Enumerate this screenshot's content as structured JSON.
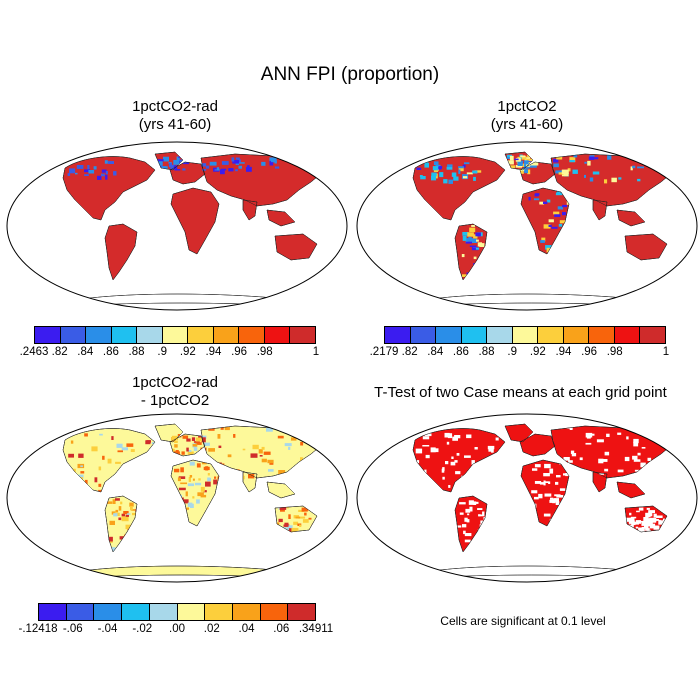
{
  "title": "ANN FPI (proportion)",
  "panels": [
    {
      "id": "tl",
      "title_line1": "1pctCO2-rad",
      "title_line2": "(yrs 41-60)",
      "scheme": "rad"
    },
    {
      "id": "tr",
      "title_line1": "1pctCO2",
      "title_line2": "(yrs 41-60)",
      "scheme": "ctrl"
    },
    {
      "id": "bl",
      "title_line1": "1pctCO2-rad",
      "title_line2": "- 1pctCO2",
      "scheme": "diff"
    },
    {
      "id": "br",
      "title_line1": "T-Test of two Case means at each grid point",
      "title_line2": "",
      "scheme": "ttest"
    }
  ],
  "colorbars": {
    "top_left": {
      "colors": [
        "#3b1cf0",
        "#3a5ce6",
        "#2a8ee8",
        "#1fc0f0",
        "#a8d8ea",
        "#fdf99a",
        "#fccf3c",
        "#f9a21a",
        "#f8640c",
        "#ee1212",
        "#cf2b2b"
      ],
      "labels": [
        ".2463",
        ".82",
        ".84",
        ".86",
        ".88",
        ".9",
        ".92",
        ".94",
        ".96",
        ".98",
        "1"
      ]
    },
    "top_right": {
      "colors": [
        "#3b1cf0",
        "#3a5ce6",
        "#2a8ee8",
        "#1fc0f0",
        "#a8d8ea",
        "#fdf99a",
        "#fccf3c",
        "#f9a21a",
        "#f8640c",
        "#ee1212",
        "#cf2b2b"
      ],
      "labels": [
        ".2179",
        ".82",
        ".84",
        ".86",
        ".88",
        ".9",
        ".92",
        ".94",
        ".96",
        ".98",
        "1"
      ]
    },
    "bottom_left": {
      "colors": [
        "#3b1cf0",
        "#3a5ce6",
        "#2a8ee8",
        "#1fc0f0",
        "#a8d8ea",
        "#fdf99a",
        "#fccf3c",
        "#f9a21a",
        "#f8640c",
        "#cf2b2b"
      ],
      "labels": [
        "-.12418",
        "-.06",
        "-.04",
        "-.02",
        ".00",
        ".02",
        ".04",
        ".06",
        ".34911"
      ]
    }
  },
  "significance_note": "Cells are significant at 0.1 level"
}
